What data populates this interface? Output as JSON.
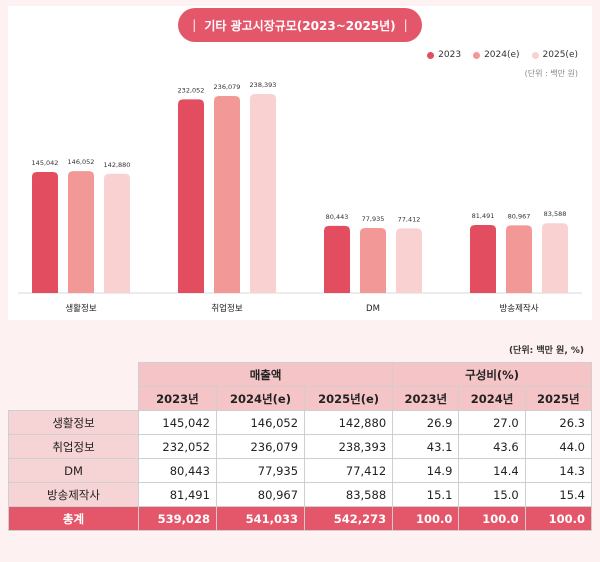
{
  "title": "기타 광고시장규모(2023~2025년)",
  "unit_note": "(단위 : 백만 원)",
  "colors": {
    "2023": "#e24e5f",
    "2024e": "#f29896",
    "2025e": "#f8d1d0"
  },
  "chart_data": {
    "type": "bar",
    "title": "기타 광고시장규모(2023~2025년)",
    "categories": [
      "생활정보",
      "취업정보",
      "DM",
      "방송제작사"
    ],
    "series": [
      {
        "name": "2023",
        "values": [
          145042,
          232052,
          80443,
          81491
        ]
      },
      {
        "name": "2024(e)",
        "values": [
          146052,
          236079,
          77935,
          80967
        ]
      },
      {
        "name": "2025(e)",
        "values": [
          142880,
          238393,
          77412,
          83588
        ]
      }
    ],
    "data_labels": [
      [
        "145,042",
        "146,052",
        "142,880"
      ],
      [
        "232,052",
        "236,079",
        "238,393"
      ],
      [
        "80,443",
        "77,935",
        "77,412"
      ],
      [
        "81,491",
        "80,967",
        "83,588"
      ]
    ],
    "ylim": [
      0,
      260000
    ],
    "legend_position": "top-right",
    "grid": false
  },
  "table": {
    "unit": "(단위: 백만 원, %)",
    "group_headers": [
      "매출액",
      "구성비(%)"
    ],
    "year_headers": [
      "2023년",
      "2024년(e)",
      "2025년(e)",
      "2023년",
      "2024년",
      "2025년"
    ],
    "rows": [
      {
        "label": "생활정보",
        "cells": [
          "145,042",
          "146,052",
          "142,880",
          "26.9",
          "27.0",
          "26.3"
        ]
      },
      {
        "label": "취업정보",
        "cells": [
          "232,052",
          "236,079",
          "238,393",
          "43.1",
          "43.6",
          "44.0"
        ]
      },
      {
        "label": "DM",
        "cells": [
          "80,443",
          "77,935",
          "77,412",
          "14.9",
          "14.4",
          "14.3"
        ]
      },
      {
        "label": "방송제작사",
        "cells": [
          "81,491",
          "80,967",
          "83,588",
          "15.1",
          "15.0",
          "15.4"
        ]
      }
    ],
    "total": {
      "label": "총계",
      "cells": [
        "539,028",
        "541,033",
        "542,273",
        "100.0",
        "100.0",
        "100.0"
      ]
    }
  }
}
